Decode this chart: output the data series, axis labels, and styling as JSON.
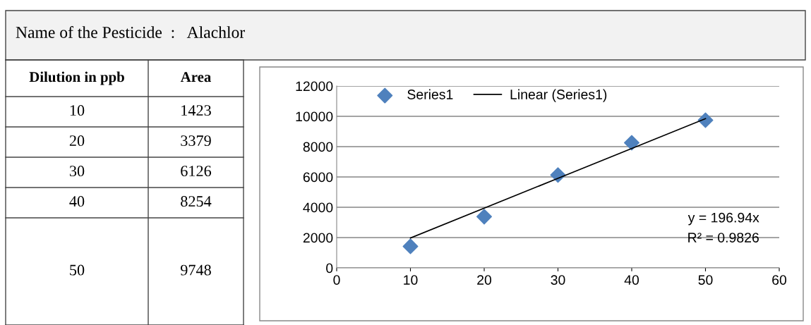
{
  "chart_data": {
    "type": "scatter",
    "title": "Name of the Pesticide  :   Alachlor",
    "x": [
      10,
      20,
      30,
      40,
      50
    ],
    "series": [
      {
        "name": "Series1",
        "color": "#4f81bd",
        "marker": "diamond",
        "values": [
          1423,
          3379,
          6126,
          8254,
          9748
        ]
      },
      {
        "name": "Linear (Series1)",
        "type": "line",
        "color": "#000000",
        "line_style": "solid",
        "x": [
          10,
          50
        ],
        "values": [
          1970,
          9850
        ]
      }
    ],
    "xlim": [
      0,
      60
    ],
    "xticks": [
      0,
      10,
      20,
      30,
      40,
      50,
      60
    ],
    "ylim": [
      0,
      12000
    ],
    "yticks": [
      0,
      2000,
      4000,
      6000,
      8000,
      10000,
      12000
    ],
    "grid": "y",
    "legend": "top",
    "annotations": [
      "Dilution in ppb",
      "Area",
      "10",
      "1423",
      "20",
      "3379",
      "30",
      "6126",
      "40",
      "8254",
      "50",
      "9748",
      "y = 196.94x",
      "R² = 0.9826"
    ]
  }
}
